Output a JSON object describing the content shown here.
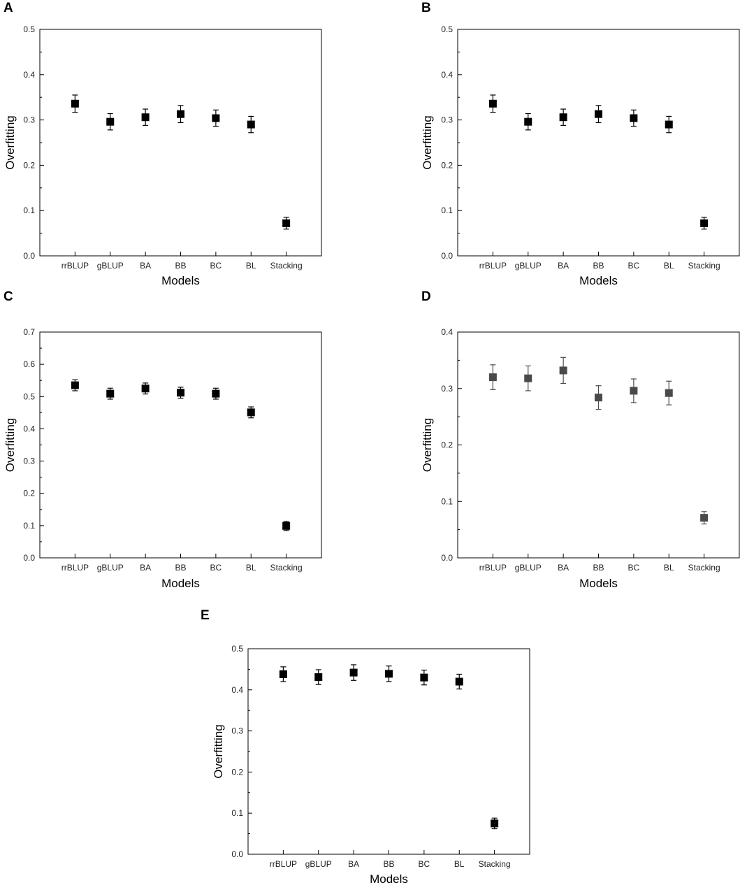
{
  "chart_data": [
    {
      "panel_label": "A",
      "type": "scatter",
      "categories": [
        "rrBLUP",
        "gBLUP",
        "BA",
        "BB",
        "BC",
        "BL",
        "Stacking"
      ],
      "values": [
        0.336,
        0.296,
        0.306,
        0.313,
        0.304,
        0.29,
        0.072
      ],
      "errors": [
        0.019,
        0.018,
        0.018,
        0.019,
        0.018,
        0.018,
        0.013
      ],
      "xlabel": "Models",
      "ylabel": "Overfitting",
      "ylim": [
        0,
        0.5
      ],
      "yticks": [
        "0.0",
        "0.1",
        "0.2",
        "0.3",
        "0.4",
        "0.5"
      ],
      "marker_color": "#000000",
      "grid": false
    },
    {
      "panel_label": "B",
      "type": "scatter",
      "categories": [
        "rrBLUP",
        "gBLUP",
        "BA",
        "BB",
        "BC",
        "BL",
        "Stacking"
      ],
      "values": [
        0.336,
        0.296,
        0.306,
        0.313,
        0.304,
        0.29,
        0.072
      ],
      "errors": [
        0.019,
        0.018,
        0.018,
        0.019,
        0.018,
        0.018,
        0.013
      ],
      "xlabel": "Models",
      "ylabel": "Overfitting",
      "ylim": [
        0,
        0.5
      ],
      "yticks": [
        "0.0",
        "0.1",
        "0.2",
        "0.3",
        "0.4",
        "0.5"
      ],
      "marker_color": "#000000",
      "grid": false
    },
    {
      "panel_label": "C",
      "type": "scatter",
      "categories": [
        "rrBLUP",
        "gBLUP",
        "BA",
        "BB",
        "BC",
        "BL",
        "Stacking"
      ],
      "values": [
        0.535,
        0.509,
        0.525,
        0.512,
        0.509,
        0.451,
        0.099
      ],
      "errors": [
        0.017,
        0.017,
        0.017,
        0.017,
        0.017,
        0.017,
        0.014
      ],
      "xlabel": "Models",
      "ylabel": "Overfitting",
      "ylim": [
        0,
        0.7
      ],
      "yticks": [
        "0.0",
        "0.1",
        "0.2",
        "0.3",
        "0.4",
        "0.5",
        "0.6",
        "0.7"
      ],
      "marker_color": "#000000",
      "grid": false
    },
    {
      "panel_label": "D",
      "type": "scatter",
      "categories": [
        "rrBLUP",
        "gBLUP",
        "BA",
        "BB",
        "BC",
        "BL",
        "Stacking"
      ],
      "values": [
        0.32,
        0.318,
        0.332,
        0.284,
        0.296,
        0.292,
        0.071
      ],
      "errors": [
        0.022,
        0.022,
        0.023,
        0.021,
        0.021,
        0.021,
        0.011
      ],
      "xlabel": "Models",
      "ylabel": "Overfitting",
      "ylim": [
        0,
        0.4
      ],
      "yticks": [
        "0.0",
        "0.1",
        "0.2",
        "0.3",
        "0.4"
      ],
      "marker_color": "#4a4a4a",
      "grid": false
    },
    {
      "panel_label": "E",
      "type": "scatter",
      "categories": [
        "rrBLUP",
        "gBLUP",
        "BA",
        "BB",
        "BC",
        "BL",
        "Stacking"
      ],
      "values": [
        0.438,
        0.431,
        0.442,
        0.439,
        0.43,
        0.42,
        0.075
      ],
      "errors": [
        0.018,
        0.018,
        0.019,
        0.019,
        0.018,
        0.018,
        0.013
      ],
      "xlabel": "Models",
      "ylabel": "Overfitting",
      "ylim": [
        0,
        0.5
      ],
      "yticks": [
        "0.0",
        "0.1",
        "0.2",
        "0.3",
        "0.4",
        "0.5"
      ],
      "marker_color": "#000000",
      "grid": false
    }
  ]
}
